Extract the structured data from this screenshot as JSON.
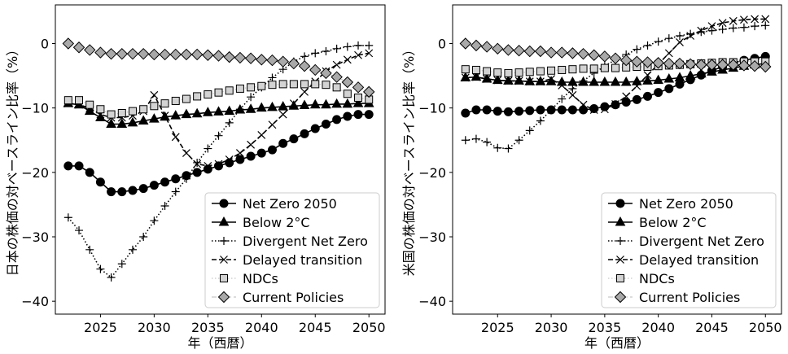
{
  "figure": {
    "x_ticks": [
      2025,
      2030,
      2035,
      2040,
      2045,
      2050
    ],
    "y_ticks": [
      -40,
      -30,
      -20,
      -10,
      0
    ],
    "legend": [
      "Net Zero 2050",
      "Below 2°C",
      "Divergent Net Zero",
      "Delayed transition",
      "NDCs",
      "Current Policies"
    ]
  },
  "chart_data": [
    {
      "type": "line",
      "xlabel": "年（西暦）",
      "ylabel": "日本の株価の対ベースライン比率（%）",
      "xlim": [
        2020.8,
        2051.5
      ],
      "ylim": [
        -42,
        6
      ],
      "legend_position": "lower right",
      "grid": false,
      "x": [
        2022,
        2023,
        2024,
        2025,
        2026,
        2027,
        2028,
        2029,
        2030,
        2031,
        2032,
        2033,
        2034,
        2035,
        2036,
        2037,
        2038,
        2039,
        2040,
        2041,
        2042,
        2043,
        2044,
        2045,
        2046,
        2047,
        2048,
        2049,
        2050
      ],
      "series": [
        {
          "name": "Net Zero 2050",
          "style": "solid",
          "marker": "circle",
          "values": [
            -19,
            -19,
            -20,
            -21.5,
            -23,
            -23,
            -22.8,
            -22.5,
            -22,
            -21.5,
            -21,
            -20.5,
            -20,
            -19.5,
            -19,
            -18.5,
            -18,
            -17.5,
            -17,
            -16.5,
            -15.5,
            -14.8,
            -14,
            -13.2,
            -12.5,
            -11.8,
            -11.3,
            -11,
            -11
          ]
        },
        {
          "name": "Below 2°C",
          "style": "solid",
          "marker": "triangle",
          "values": [
            -9.3,
            -9.5,
            -10.5,
            -11.5,
            -12.5,
            -12.5,
            -12.3,
            -12,
            -11.7,
            -11.4,
            -11.2,
            -11,
            -10.9,
            -10.7,
            -10.6,
            -10.5,
            -10.3,
            -10.2,
            -10,
            -9.9,
            -9.8,
            -9.7,
            -9.6,
            -9.5,
            -9.5,
            -9.4,
            -9.4,
            -9.3,
            -9.3
          ]
        },
        {
          "name": "Divergent Net Zero",
          "style": "dotted",
          "marker": "plus",
          "values": [
            -27,
            -29,
            -32,
            -35,
            -36.3,
            -34.2,
            -32,
            -30,
            -27.5,
            -25.2,
            -23,
            -21,
            -18.5,
            -16.3,
            -14.3,
            -12.3,
            -10.2,
            -8.3,
            -6.8,
            -5.3,
            -4,
            -2.8,
            -2,
            -1.5,
            -1.2,
            -0.8,
            -0.5,
            -0.3,
            -0.3
          ]
        },
        {
          "name": "Delayed transition",
          "style": "dashed",
          "marker": "x",
          "values": [
            -9.3,
            -9.5,
            -10,
            -11,
            -11.5,
            -11.5,
            -11.2,
            -10.5,
            -8,
            -11.2,
            -14.5,
            -17,
            -18.7,
            -19,
            -18.7,
            -18,
            -17,
            -15.7,
            -14.2,
            -12.6,
            -11,
            -9.3,
            -7.5,
            -5.9,
            -4.3,
            -3.3,
            -2.5,
            -1.8,
            -1.5
          ]
        },
        {
          "name": "NDCs",
          "style": "dotted-light",
          "marker": "square",
          "values": [
            -8.8,
            -8.8,
            -9.5,
            -10.2,
            -11,
            -10.8,
            -10.5,
            -10.2,
            -9.7,
            -9.3,
            -8.9,
            -8.6,
            -8.2,
            -7.9,
            -7.6,
            -7.3,
            -7,
            -6.8,
            -6.6,
            -6.4,
            -6.3,
            -6.3,
            -6.3,
            -6.3,
            -6.4,
            -6.8,
            -7.8,
            -8.4,
            -8.7
          ]
        },
        {
          "name": "Current Policies",
          "style": "dashdot-light",
          "marker": "diamond",
          "values": [
            0,
            -0.6,
            -1,
            -1.4,
            -1.6,
            -1.6,
            -1.6,
            -1.6,
            -1.7,
            -1.7,
            -1.7,
            -1.7,
            -1.7,
            -1.8,
            -1.9,
            -2.1,
            -2.2,
            -2.3,
            -2.5,
            -2.6,
            -2.8,
            -3.1,
            -3.5,
            -4.1,
            -4.6,
            -5.2,
            -6,
            -6.8,
            -7.5
          ]
        }
      ]
    },
    {
      "type": "line",
      "xlabel": "年（西暦）",
      "ylabel": "米国の株価の対ベースライン比率（%）",
      "xlim": [
        2020.8,
        2051.5
      ],
      "ylim": [
        -42,
        6
      ],
      "legend_position": "lower right",
      "grid": false,
      "x": [
        2022,
        2023,
        2024,
        2025,
        2026,
        2027,
        2028,
        2029,
        2030,
        2031,
        2032,
        2033,
        2034,
        2035,
        2036,
        2037,
        2038,
        2039,
        2040,
        2041,
        2042,
        2043,
        2044,
        2045,
        2046,
        2047,
        2048,
        2049,
        2050
      ],
      "series": [
        {
          "name": "Net Zero 2050",
          "style": "solid",
          "marker": "circle",
          "values": [
            -10.8,
            -10.3,
            -10.3,
            -10.5,
            -10.6,
            -10.5,
            -10.4,
            -10.3,
            -10.3,
            -10.3,
            -10.3,
            -10.3,
            -10.1,
            -9.8,
            -9.5,
            -9.1,
            -8.7,
            -8.2,
            -7.6,
            -7,
            -6.3,
            -5.6,
            -4.9,
            -4.2,
            -3.6,
            -3,
            -2.6,
            -2.3,
            -2
          ]
        },
        {
          "name": "Below 2°C",
          "style": "solid",
          "marker": "triangle",
          "values": [
            -5.3,
            -5.2,
            -5.5,
            -5.7,
            -5.8,
            -5.8,
            -5.9,
            -5.9,
            -5.9,
            -6,
            -6,
            -6,
            -6,
            -6,
            -6,
            -6,
            -5.9,
            -5.8,
            -5.7,
            -5.5,
            -5.3,
            -5,
            -4.7,
            -4.4,
            -4.1,
            -3.8,
            -3.5,
            -3.3,
            -3.1
          ]
        },
        {
          "name": "Divergent Net Zero",
          "style": "dotted",
          "marker": "plus",
          "values": [
            -15,
            -14.8,
            -15.3,
            -16.2,
            -16.3,
            -15,
            -13.5,
            -12,
            -10.3,
            -8.6,
            -7,
            -5.8,
            -4.6,
            -3.5,
            -2.5,
            -1.7,
            -0.9,
            -0.3,
            0.3,
            0.8,
            1.2,
            1.5,
            1.8,
            2,
            2.2,
            2.4,
            2.5,
            2.7,
            2.8
          ]
        },
        {
          "name": "Delayed transition",
          "style": "dashed",
          "marker": "x",
          "values": [
            -5.3,
            -5.2,
            -5.5,
            -5.7,
            -5.8,
            -5.8,
            -5.9,
            -5.9,
            -5.5,
            -6.5,
            -8,
            -9.5,
            -10.3,
            -10.2,
            -9.4,
            -8.2,
            -6.6,
            -4.9,
            -3.2,
            -1.5,
            0.2,
            1.2,
            2,
            2.7,
            3.2,
            3.5,
            3.7,
            3.8,
            3.8
          ]
        },
        {
          "name": "NDCs",
          "style": "dotted-light",
          "marker": "square",
          "values": [
            -4,
            -4.1,
            -4.3,
            -4.5,
            -4.6,
            -4.5,
            -4.4,
            -4.3,
            -4.2,
            -4.1,
            -4,
            -3.9,
            -3.9,
            -3.8,
            -3.8,
            -3.7,
            -3.6,
            -3.6,
            -3.5,
            -3.4,
            -3.3,
            -3.2,
            -3.1,
            -3,
            -2.9,
            -2.9,
            -2.8,
            -2.8,
            -2.8
          ]
        },
        {
          "name": "Current Policies",
          "style": "dashdot-light",
          "marker": "diamond",
          "values": [
            0,
            -0.3,
            -0.5,
            -0.8,
            -1,
            -1.1,
            -1.2,
            -1.2,
            -1.4,
            -1.4,
            -1.5,
            -1.6,
            -1.8,
            -2,
            -2.3,
            -2.6,
            -2.8,
            -2.9,
            -3,
            -3.1,
            -3.1,
            -3.2,
            -3.3,
            -3.3,
            -3.3,
            -3.3,
            -3.4,
            -3.5,
            -3.6
          ]
        }
      ]
    }
  ]
}
